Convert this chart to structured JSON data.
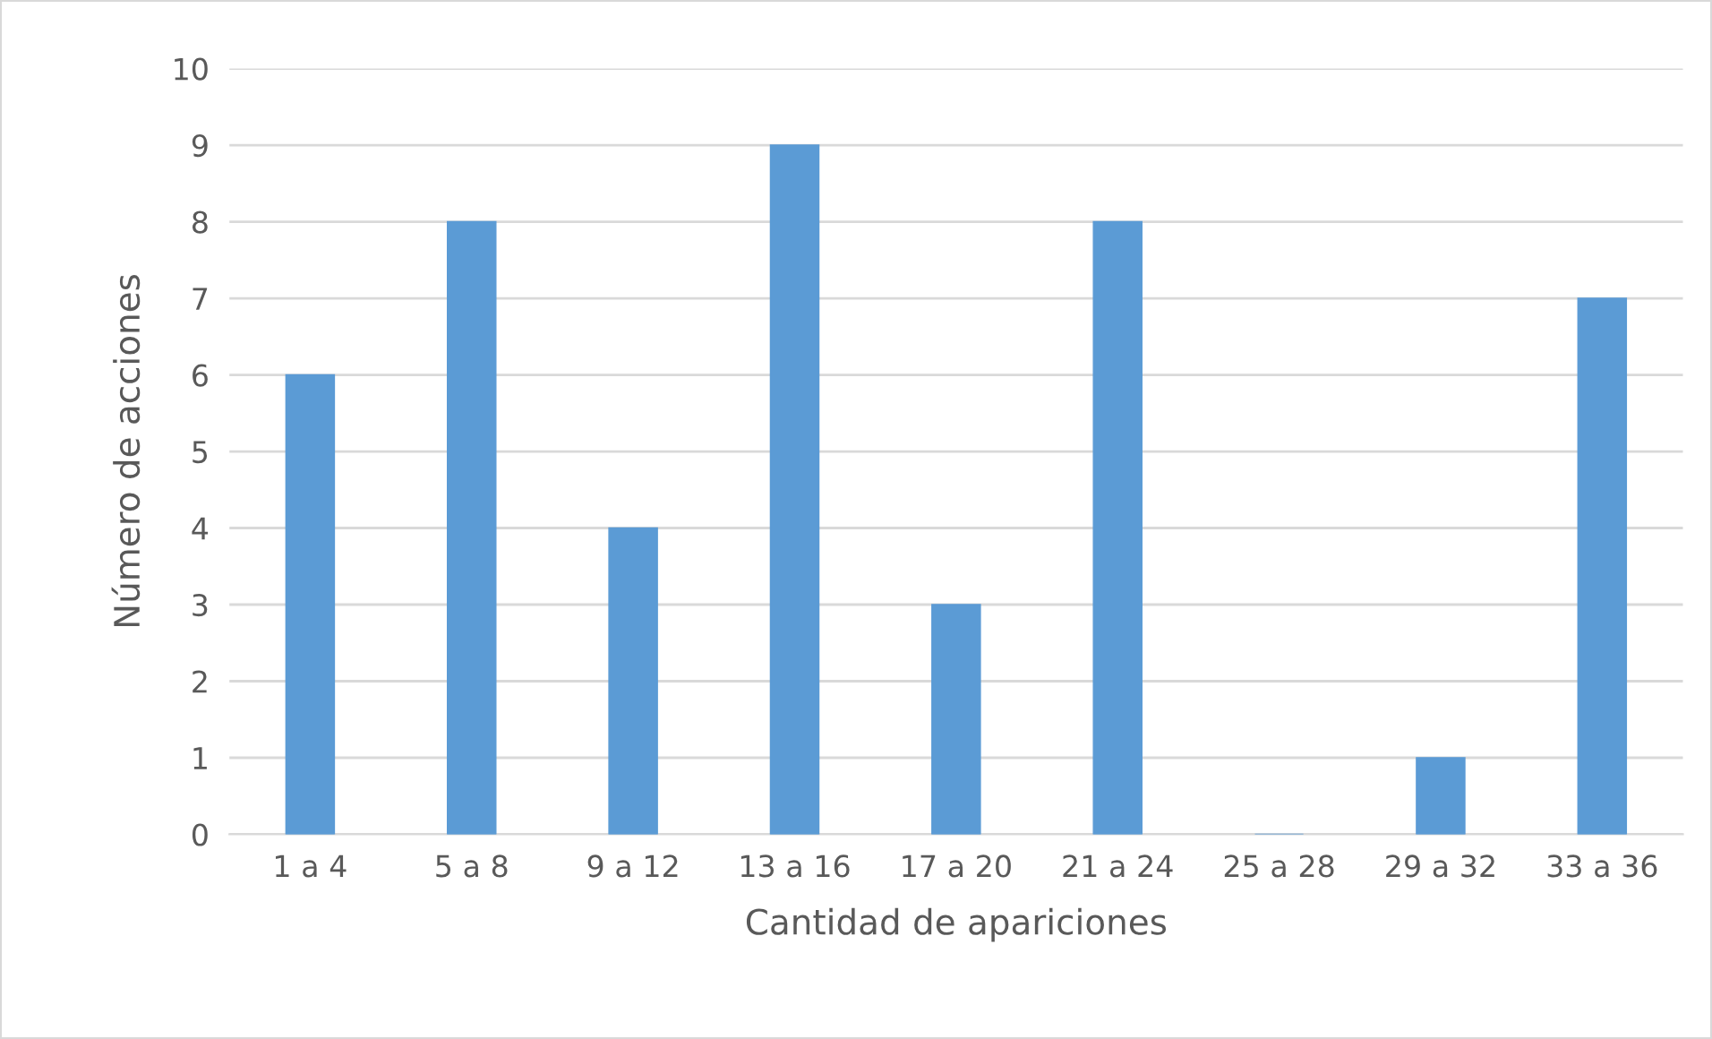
{
  "chart_data": {
    "type": "bar",
    "xlabel": "Cantidad de apariciones",
    "ylabel": "Número de acciones",
    "categories": [
      "1 a 4",
      "5 a 8",
      "9 a 12",
      "13 a 16",
      "17 a 20",
      "21 a 24",
      "25 a 28",
      "29 a 32",
      "33 a 36"
    ],
    "values": [
      6,
      8,
      4,
      9,
      3,
      8,
      0,
      1,
      7
    ],
    "color": "#5b9bd5",
    "ylim": [
      0,
      10
    ],
    "yticks": [
      0,
      1,
      2,
      3,
      4,
      5,
      6,
      7,
      8,
      9,
      10
    ],
    "grid": "y"
  }
}
